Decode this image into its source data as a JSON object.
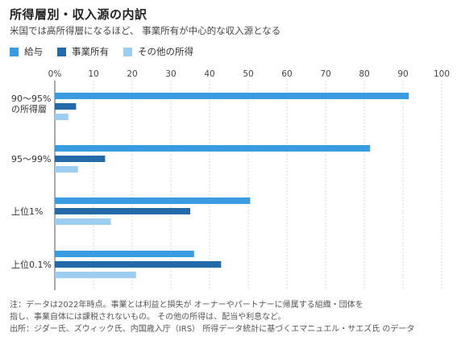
{
  "header": {
    "title": "所得層別・収入源の内訳",
    "subtitle": "米国では高所得層になるほど、 事業所有が中心的な収入源となる"
  },
  "colors": {
    "series": [
      "#3b9be0",
      "#2469a8",
      "#9dcdf0"
    ],
    "grid": "#d7d7d7",
    "axis": "#555555",
    "text": "#444444"
  },
  "chart_data": {
    "type": "bar",
    "orientation": "horizontal",
    "categories": [
      "90〜95%\nの所得層",
      "95〜99%",
      "上位1%",
      "上位0.1%"
    ],
    "series": [
      {
        "name": "給与",
        "values": [
          91.5,
          81.5,
          50.5,
          36
        ]
      },
      {
        "name": "事業所有",
        "values": [
          5.5,
          13,
          35,
          43
        ]
      },
      {
        "name": "その他の所得",
        "values": [
          3.5,
          6,
          14.5,
          21
        ]
      }
    ],
    "xlim": [
      0,
      100
    ],
    "xticks": [
      0,
      10,
      20,
      30,
      40,
      50,
      60,
      70,
      80,
      90,
      100
    ],
    "tick_suffix_first": "%",
    "grid": true,
    "legend_position": "top-left"
  },
  "footer": {
    "note_lines": [
      "注：データは2022年時点。事業とは利益と損失が オーナーやパートナーに帰属する組織・団体を",
      "指し、事業自体には課税されないもの。 その他の所得は、配当や利息など。",
      "出所：ジダー氏、ズウィック氏、内国歳入庁（IRS） 所得データ統計に基づくエマニュエル・サエズ氏 のデータ"
    ]
  }
}
